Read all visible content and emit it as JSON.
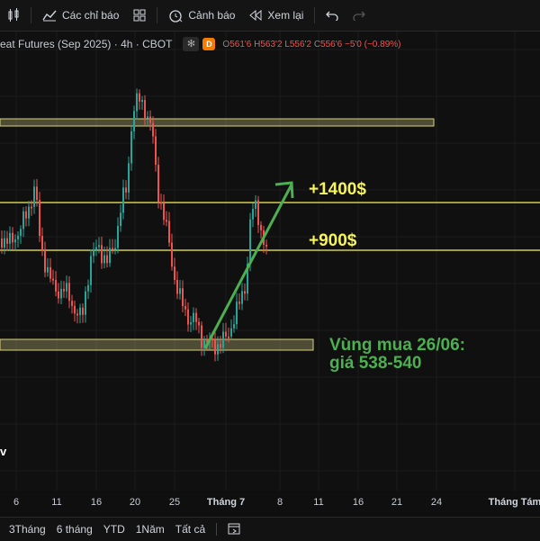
{
  "toolbar": {
    "indicators_label": "Các chỉ báo",
    "alerts_label": "Cảnh báo",
    "replay_label": "Xem lại"
  },
  "legend": {
    "symbol": "eat Futures (Sep 2025) · 4h · CBOT",
    "badge": "D",
    "open_label": "O",
    "open_value": "561'6",
    "high_label": "H",
    "high_value": "563'2",
    "low_label": "L",
    "low_value": "556'2",
    "close_label": "C",
    "close_value": "556'6",
    "change": "−5'0 (−0.89%)"
  },
  "annotations": {
    "level_high": "+1400$",
    "level_low": "+900$",
    "buy_zone_line1": "Vùng mua 26/06:",
    "buy_zone_line2": "giá 538-540",
    "colors": {
      "level": "#f7f35a",
      "buy_zone": "#4caf50",
      "arrow": "#4caf50",
      "up": "#26a69a",
      "down": "#ef5350"
    }
  },
  "xaxis": {
    "labels": [
      "6",
      "11",
      "16",
      "20",
      "25",
      "Tháng 7",
      "8",
      "11",
      "16",
      "21",
      "24",
      "Tháng Tám"
    ]
  },
  "bottombar": {
    "ranges": [
      "3Tháng",
      "6 tháng",
      "YTD",
      "1Năm",
      "Tất cả"
    ]
  }
}
